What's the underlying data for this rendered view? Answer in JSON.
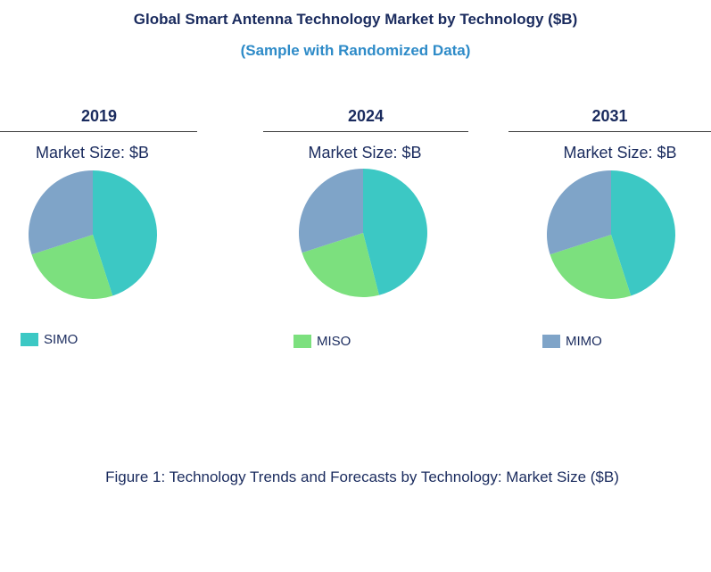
{
  "title": "Global Smart Antenna Technology Market by Technology ($B)",
  "subtitle": "(Sample with Randomized Data)",
  "figure_caption": "Figure 1: Technology Trends and Forecasts by Technology: Market Size ($B)",
  "colors": {
    "SIMO": "#3cc8c4",
    "MISO": "#7ce07e",
    "MIMO": "#7fa4c8"
  },
  "chart_data": [
    {
      "type": "pie",
      "title": "2019",
      "subtitle": "Market Size: $B",
      "categories": [
        "SIMO",
        "MISO",
        "MIMO"
      ],
      "values": [
        45,
        25,
        30
      ]
    },
    {
      "type": "pie",
      "title": "2024",
      "subtitle": "Market Size: $B",
      "categories": [
        "SIMO",
        "MISO",
        "MIMO"
      ],
      "values": [
        46,
        24,
        30
      ]
    },
    {
      "type": "pie",
      "title": "2031",
      "subtitle": "Market Size: $B",
      "categories": [
        "SIMO",
        "MISO",
        "MIMO"
      ],
      "values": [
        45,
        25,
        30
      ]
    }
  ],
  "legend": [
    "SIMO",
    "MISO",
    "MIMO"
  ]
}
